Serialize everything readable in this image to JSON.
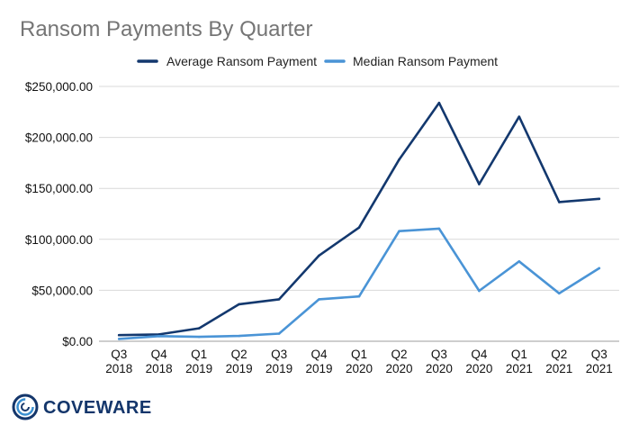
{
  "chart_data": {
    "type": "line",
    "title": "Ransom Payments By Quarter",
    "xlabel": "",
    "ylabel": "",
    "categories": [
      [
        "Q3",
        "2018"
      ],
      [
        "Q4",
        "2018"
      ],
      [
        "Q1",
        "2019"
      ],
      [
        "Q2",
        "2019"
      ],
      [
        "Q3",
        "2019"
      ],
      [
        "Q4",
        "2019"
      ],
      [
        "Q1",
        "2020"
      ],
      [
        "Q2",
        "2020"
      ],
      [
        "Q3",
        "2020"
      ],
      [
        "Q4",
        "2020"
      ],
      [
        "Q1",
        "2021"
      ],
      [
        "Q2",
        "2021"
      ],
      [
        "Q3",
        "2021"
      ]
    ],
    "ylim": [
      0,
      250000
    ],
    "yticks": [
      "$0.00",
      "$50,000.00",
      "$100,000.00",
      "$150,000.00",
      "$200,000.00",
      "$250,000.00"
    ],
    "ytick_values": [
      0,
      50000,
      100000,
      150000,
      200000,
      250000
    ],
    "grid": true,
    "legend_position": "top",
    "series": [
      {
        "name": "Average Ransom Payment",
        "color": "#13386e",
        "values": [
          5973,
          6733,
          12762,
          36295,
          41198,
          84116,
          111605,
          178254,
          233817,
          154108,
          220298,
          136576,
          139739
        ]
      },
      {
        "name": "Median Ransom Payment",
        "color": "#4a94d6",
        "values": [
          2300,
          5000,
          4300,
          5200,
          7500,
          41179,
          44021,
          108000,
          110532,
          49450,
          78398,
          47008,
          71674
        ]
      }
    ]
  },
  "logo": {
    "text": "COVEWARE",
    "icon": "coveware-logo-icon"
  }
}
